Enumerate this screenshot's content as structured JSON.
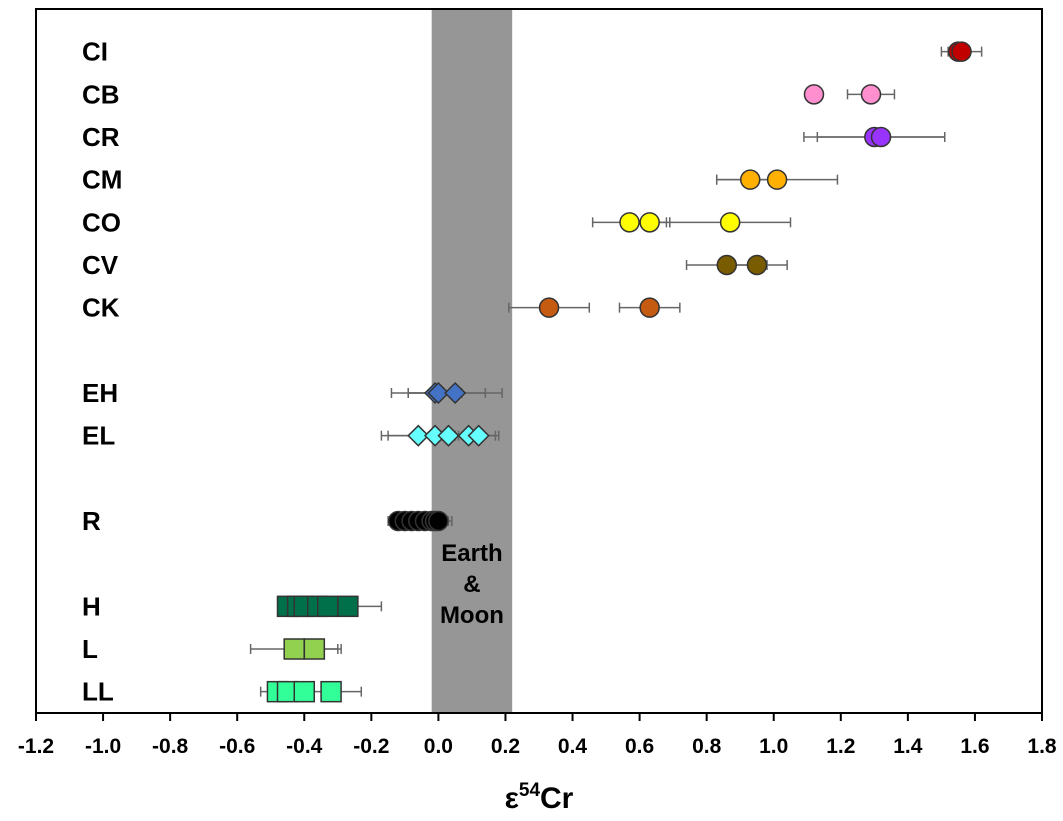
{
  "chart_data": {
    "type": "scatter",
    "title": "",
    "xlabel_base": "ε",
    "xlabel_sup": "54",
    "xlabel_rest": "Cr",
    "xlim": [
      -1.2,
      1.8
    ],
    "xticks": [
      "-1.2",
      "-1.0",
      "-0.8",
      "-0.6",
      "-0.4",
      "-0.2",
      "0.0",
      "0.2",
      "0.4",
      "0.6",
      "0.8",
      "1.0",
      "1.2",
      "1.4",
      "1.6",
      "1.8"
    ],
    "ylim": [
      0,
      16.5
    ],
    "grid": false,
    "band": {
      "x0": -0.02,
      "x1": 0.22,
      "color": "#969696",
      "label": [
        "Earth",
        "&",
        "Moon"
      ]
    },
    "groups": [
      {
        "label": "CI",
        "y": 15.5,
        "marker": "circle",
        "color": "#c00000",
        "points": [
          {
            "x": 1.55,
            "err": 0.03
          },
          {
            "x": 1.56,
            "err": 0.06
          }
        ]
      },
      {
        "label": "CB",
        "y": 14.5,
        "marker": "circle",
        "color": "#ff8fcf",
        "points": [
          {
            "x": 1.12,
            "err": 0
          },
          {
            "x": 1.29,
            "err": 0.07
          }
        ]
      },
      {
        "label": "CR",
        "y": 13.5,
        "marker": "circle",
        "color": "#9933ff",
        "points": [
          {
            "x": 1.3,
            "err": 0.21
          },
          {
            "x": 1.32,
            "err": 0.19
          }
        ]
      },
      {
        "label": "CM",
        "y": 12.5,
        "marker": "circle",
        "color": "#ffb000",
        "points": [
          {
            "x": 0.93,
            "err": 0.1
          },
          {
            "x": 1.01,
            "err": 0.18
          }
        ]
      },
      {
        "label": "CO",
        "y": 11.5,
        "marker": "circle",
        "color": "#ffff00",
        "points": [
          {
            "x": 0.57,
            "err": 0.11
          },
          {
            "x": 0.63,
            "err": 0.06
          },
          {
            "x": 0.87,
            "err": 0.18
          }
        ]
      },
      {
        "label": "CV",
        "y": 10.5,
        "marker": "circle",
        "color": "#7a5c00",
        "points": [
          {
            "x": 0.86,
            "err": 0.12
          },
          {
            "x": 0.95,
            "err": 0.09
          }
        ]
      },
      {
        "label": "CK",
        "y": 9.5,
        "marker": "circle",
        "color": "#c55a11",
        "points": [
          {
            "x": 0.33,
            "err": 0.12
          },
          {
            "x": 0.63,
            "err": 0.09
          }
        ]
      },
      {
        "label": "EH",
        "y": 7.5,
        "marker": "diamond",
        "color": "#4472c4",
        "points": [
          {
            "x": -0.01,
            "err": 0.08
          },
          {
            "x": 0.0,
            "err": 0.14
          },
          {
            "x": 0.05,
            "err": 0.14
          }
        ]
      },
      {
        "label": "EL",
        "y": 6.5,
        "marker": "diamond",
        "color": "#66ffff",
        "points": [
          {
            "x": -0.06,
            "err": 0.11
          },
          {
            "x": -0.01,
            "err": 0.14
          },
          {
            "x": 0.03,
            "err": 0.1
          },
          {
            "x": 0.09,
            "err": 0.08
          },
          {
            "x": 0.12,
            "err": 0.06
          }
        ]
      },
      {
        "label": "R",
        "y": 4.5,
        "marker": "circle",
        "color": "#000000",
        "points": [
          {
            "x": -0.12,
            "err": 0.03
          },
          {
            "x": -0.1,
            "err": 0.04
          },
          {
            "x": -0.08,
            "err": 0.05
          },
          {
            "x": -0.06,
            "err": 0.04
          },
          {
            "x": -0.04,
            "err": 0.04
          },
          {
            "x": -0.02,
            "err": 0.05
          },
          {
            "x": -0.01,
            "err": 0.05
          },
          {
            "x": 0.0,
            "err": 0.04
          }
        ]
      },
      {
        "label": "H",
        "y": 2.5,
        "marker": "square",
        "color": "#00704a",
        "points": [
          {
            "x": -0.45,
            "err": 0
          },
          {
            "x": -0.42,
            "err": 0
          },
          {
            "x": -0.4,
            "err": 0
          },
          {
            "x": -0.36,
            "err": 0
          },
          {
            "x": -0.33,
            "err": 0
          },
          {
            "x": -0.27,
            "err": 0.1
          }
        ]
      },
      {
        "label": "L",
        "y": 1.5,
        "marker": "square",
        "color": "#92d050",
        "points": [
          {
            "x": -0.43,
            "err": 0.13
          },
          {
            "x": -0.37,
            "err": 0.08
          }
        ]
      },
      {
        "label": "LL",
        "y": 0.5,
        "marker": "square",
        "color": "#33ff99",
        "points": [
          {
            "x": -0.48,
            "err": 0.05
          },
          {
            "x": -0.45,
            "err": 0
          },
          {
            "x": -0.4,
            "err": 0
          },
          {
            "x": -0.32,
            "err": 0.09
          }
        ]
      }
    ]
  }
}
